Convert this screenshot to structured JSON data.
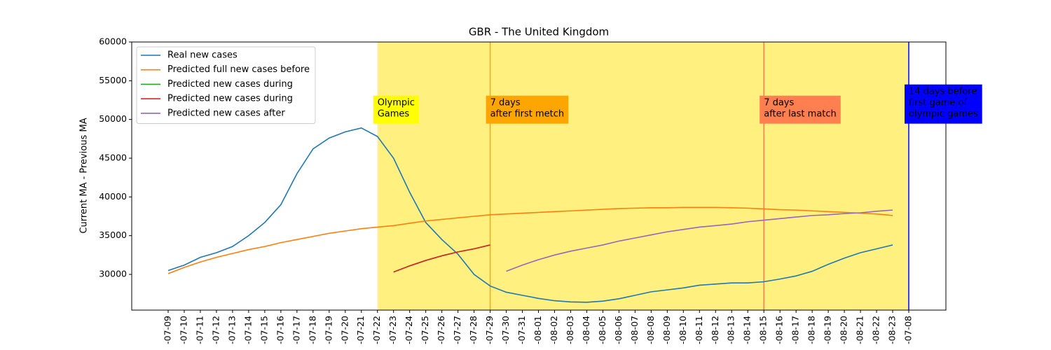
{
  "chart_data": {
    "type": "line",
    "title": "GBR - The United Kingdom",
    "y_label": "Current MA - Previous MA",
    "categories": [
      "-07-09",
      "-07-10",
      "-07-11",
      "-07-12",
      "-07-13",
      "-07-14",
      "-07-15",
      "-07-16",
      "-07-17",
      "-07-18",
      "-07-19",
      "-07-20",
      "-07-21",
      "-07-22",
      "-07-23",
      "-07-24",
      "-07-25",
      "-07-26",
      "-07-27",
      "-07-28",
      "-07-29",
      "-07-30",
      "-07-31",
      "-08-01",
      "-08-02",
      "-08-03",
      "-08-04",
      "-08-05",
      "-08-06",
      "-08-07",
      "-08-08",
      "-08-09",
      "-08-10",
      "-08-11",
      "-08-12",
      "-08-13",
      "-08-14",
      "-08-15",
      "-08-16",
      "-08-17",
      "-08-18",
      "-08-19",
      "-08-20",
      "-08-21",
      "-08-22",
      "-08-23",
      "-07-08"
    ],
    "series": [
      {
        "name": "Real new cases",
        "color": "#1f77b4",
        "values": [
          30500,
          31200,
          32200,
          32800,
          33600,
          35000,
          36700,
          39000,
          43000,
          46200,
          47600,
          48400,
          48900,
          47800,
          45000,
          40600,
          36700,
          34500,
          32600,
          30000,
          28500,
          27700,
          27300,
          26900,
          26600,
          26450,
          26400,
          26550,
          26850,
          27300,
          27750,
          28000,
          28250,
          28600,
          28750,
          28900,
          28900,
          29050,
          29400,
          29800,
          30400,
          31300,
          32100,
          32800,
          33300,
          33800,
          null
        ]
      },
      {
        "name": "Predicted full new cases before",
        "color": "#ff7f0e",
        "values": [
          30100,
          30900,
          31600,
          32200,
          32700,
          33200,
          33600,
          34100,
          34500,
          34900,
          35300,
          35600,
          35900,
          36100,
          36300,
          36600,
          36900,
          37100,
          37300,
          37500,
          37700,
          37800,
          37900,
          38000,
          38100,
          38200,
          38300,
          38400,
          38500,
          38550,
          38600,
          38600,
          38650,
          38650,
          38650,
          38600,
          38550,
          38450,
          38350,
          38300,
          38200,
          38100,
          38000,
          37900,
          37800,
          37600,
          null
        ]
      },
      {
        "name": "Predicted new cases during",
        "color": "#2ca02c",
        "values": [
          null,
          null,
          null,
          null,
          null,
          null,
          null,
          null,
          null,
          null,
          null,
          null,
          null,
          null,
          30300,
          31100,
          31800,
          32400,
          32900,
          33300,
          33800,
          null,
          null,
          null,
          null,
          null,
          null,
          null,
          null,
          null,
          null,
          null,
          null,
          null,
          null,
          null,
          null,
          null,
          null,
          null,
          null,
          null,
          null,
          null,
          null,
          null,
          null
        ]
      },
      {
        "name": "Predicted new cases during",
        "color": "#d62728",
        "values": [
          null,
          null,
          null,
          null,
          null,
          null,
          null,
          null,
          null,
          null,
          null,
          null,
          null,
          null,
          30300,
          31100,
          31800,
          32400,
          32900,
          33300,
          33800,
          null,
          null,
          null,
          null,
          null,
          null,
          null,
          null,
          null,
          null,
          null,
          null,
          null,
          null,
          null,
          null,
          null,
          null,
          null,
          null,
          null,
          null,
          null,
          null,
          null,
          null
        ]
      },
      {
        "name": "Predicted new cases after",
        "color": "#9467bd",
        "values": [
          null,
          null,
          null,
          null,
          null,
          null,
          null,
          null,
          null,
          null,
          null,
          null,
          null,
          null,
          null,
          null,
          null,
          null,
          null,
          null,
          null,
          30400,
          31200,
          31900,
          32500,
          33000,
          33400,
          33800,
          34300,
          34700,
          35100,
          35500,
          35800,
          36100,
          36300,
          36500,
          36800,
          37000,
          37200,
          37400,
          37600,
          37700,
          37850,
          37950,
          38150,
          38300,
          null
        ]
      }
    ],
    "ylim": [
      25390,
      60000
    ],
    "yticks": [
      30000,
      35000,
      40000,
      45000,
      50000,
      55000,
      60000
    ],
    "legend": "upper left",
    "span": {
      "from": "-07-22",
      "to": "-07-08",
      "color": "#fff080"
    },
    "annotations": [
      {
        "lines": [
          "Olympic",
          "Games"
        ],
        "x": "-07-22",
        "y": 50000,
        "box_color": "#ffff00",
        "text_color": "#000000"
      },
      {
        "lines": [
          "7 days",
          "after first metch"
        ],
        "x": "-07-29",
        "y": 50000,
        "box_color": "#ffa500",
        "text_color": "#000000",
        "line_color": "#ffa500"
      },
      {
        "lines": [
          "7 days",
          "after last match"
        ],
        "x": "-08-15",
        "y": 50000,
        "box_color": "#ff7f50",
        "text_color": "#000000",
        "line_color": "#ff7f50"
      },
      {
        "lines": [
          "14 days before",
          "first game of",
          "olympic games"
        ],
        "x": "-07-08",
        "y": 50000,
        "box_color": "#0000ff",
        "text_color": "#ffffff",
        "line_color": "#0000ff"
      }
    ]
  }
}
